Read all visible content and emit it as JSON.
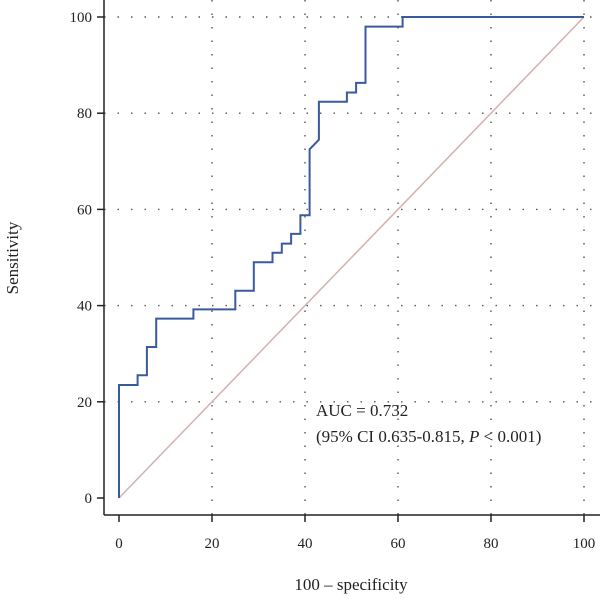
{
  "chart_data": {
    "type": "line",
    "xlabel": "100 – specificity",
    "ylabel": "Sensitivity",
    "xlim": [
      0,
      100
    ],
    "ylim": [
      0,
      100
    ],
    "xticks": [
      0,
      20,
      40,
      60,
      80,
      100
    ],
    "yticks": [
      0,
      20,
      40,
      60,
      80,
      100
    ],
    "grid": true,
    "annotations": {
      "auc": "AUC = 0.732",
      "ci_prefix": "(95% CI 0.635-0.815, ",
      "p_symbol": "P",
      "p_suffix": " < 0.001)"
    },
    "series": [
      {
        "kind": "roc-curve",
        "color": "#3a5aa0",
        "x": [
          0,
          0,
          4,
          4,
          6,
          6,
          8,
          8,
          16,
          16,
          25,
          25,
          29,
          29,
          33,
          33,
          35,
          35,
          37,
          37,
          39,
          39,
          41,
          41,
          43,
          43,
          49,
          49,
          51,
          51,
          53,
          53,
          61,
          61,
          100
        ],
        "y": [
          0,
          23.5,
          23.5,
          25.5,
          25.5,
          31.4,
          31.4,
          37.3,
          37.3,
          39.2,
          39.2,
          43.1,
          43.1,
          49.0,
          49.0,
          51.0,
          51.0,
          52.9,
          52.9,
          54.9,
          54.9,
          58.8,
          58.8,
          72.5,
          74.5,
          82.4,
          82.4,
          84.3,
          84.3,
          86.3,
          86.3,
          98.0,
          98.0,
          100,
          100
        ]
      },
      {
        "kind": "reference-diagonal",
        "color": "#d4b0b0",
        "x": [
          0,
          100
        ],
        "y": [
          0,
          100
        ]
      }
    ]
  }
}
